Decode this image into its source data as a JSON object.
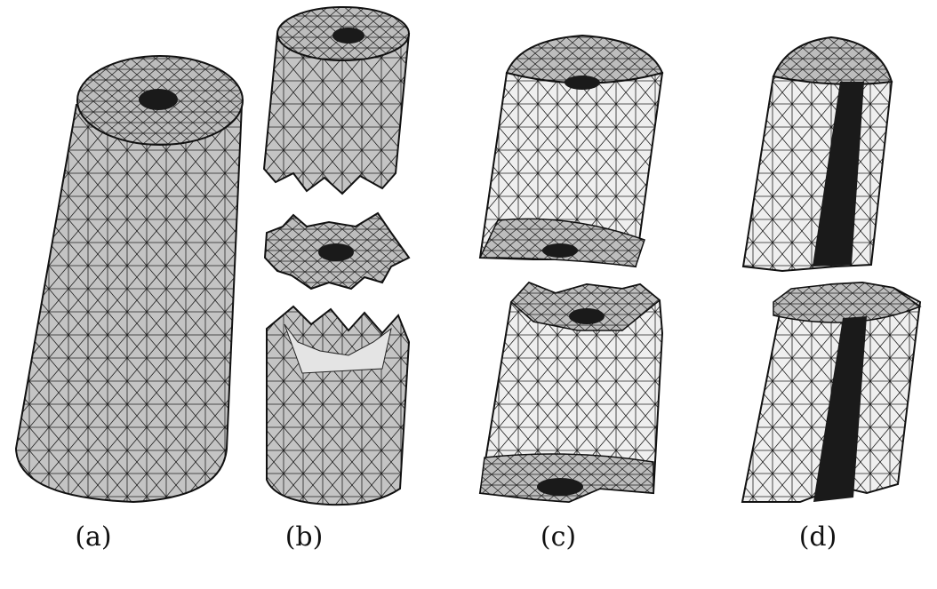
{
  "figure": {
    "panels": [
      {
        "id": "a",
        "label": "(a)"
      },
      {
        "id": "b",
        "label": "(b)"
      },
      {
        "id": "c",
        "label": "(c)"
      },
      {
        "id": "d",
        "label": "(d)"
      }
    ],
    "colors": {
      "mesh_line": "#111111",
      "surface_dark": "#c4c4c4",
      "surface_light": "#efefef",
      "cap": "#bdbdbd",
      "dense_region": "#1a1a1a",
      "background": "#ffffff"
    }
  }
}
